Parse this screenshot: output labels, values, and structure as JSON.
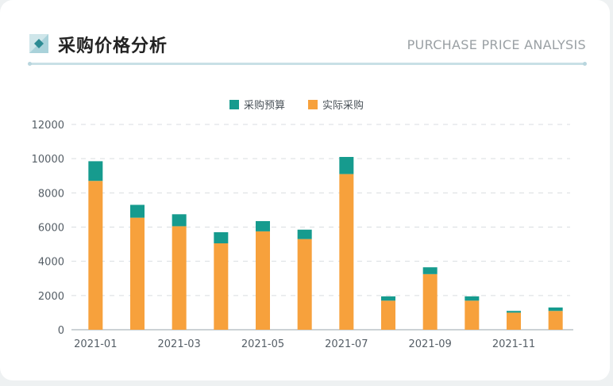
{
  "header": {
    "title": "采购价格分析",
    "subtitle": "PURCHASE PRICE ANALYSIS"
  },
  "colors": {
    "budget": "#169b8e",
    "actual": "#f7a13c",
    "grid": "#d9dde0",
    "axis": "#9aa4ab"
  },
  "chart_data": {
    "type": "bar",
    "stacked": true,
    "categories": [
      "2021-01",
      "2021-02",
      "2021-03",
      "2021-04",
      "2021-05",
      "2021-06",
      "2021-07",
      "2021-08",
      "2021-09",
      "2021-10",
      "2021-11",
      "2021-12"
    ],
    "x_tick_labels": [
      "2021-01",
      "2021-03",
      "2021-05",
      "2021-07",
      "2021-09",
      "2021-11"
    ],
    "series": [
      {
        "name": "实际采购",
        "values": [
          8700,
          6550,
          6050,
          5050,
          5750,
          5300,
          9100,
          1700,
          3250,
          1700,
          1000,
          1100
        ]
      },
      {
        "name": "采购预算",
        "values": [
          1150,
          750,
          700,
          650,
          600,
          550,
          1000,
          250,
          400,
          250,
          100,
          200
        ]
      }
    ],
    "legend": [
      "采购预算",
      "实际采购"
    ],
    "legend_position": "top-center",
    "ylim": [
      0,
      12000
    ],
    "y_ticks": [
      0,
      2000,
      4000,
      6000,
      8000,
      10000,
      12000
    ],
    "grid": true
  }
}
